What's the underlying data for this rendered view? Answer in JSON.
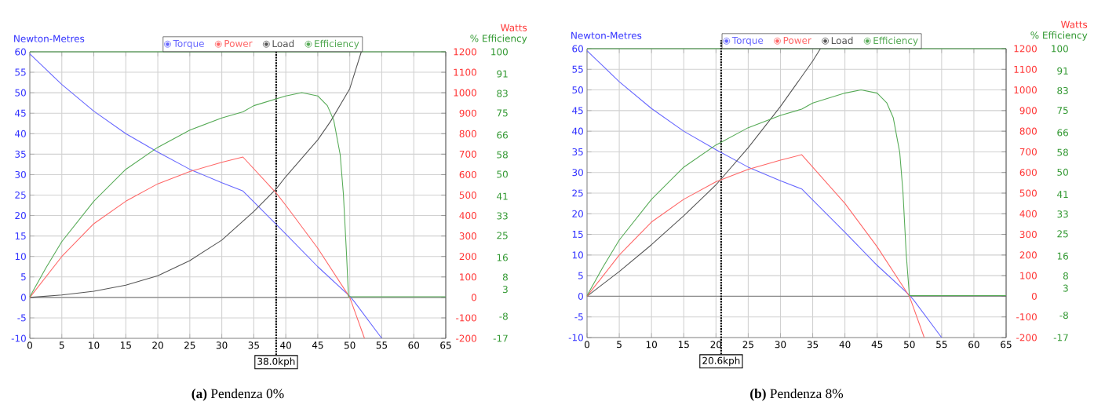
{
  "chart_data": [
    {
      "type": "line",
      "xlim": [
        0,
        65
      ],
      "xticks": [
        0,
        5,
        10,
        15,
        20,
        25,
        30,
        35,
        40,
        45,
        50,
        55,
        60,
        65
      ],
      "ylim": [
        -10,
        60
      ],
      "yticks": [
        -10,
        -5,
        0,
        5,
        10,
        15,
        20,
        25,
        30,
        35,
        40,
        45,
        50,
        55,
        60
      ],
      "y2lim": [
        -200,
        1200
      ],
      "y2ticks": [
        -200,
        -100,
        0,
        100,
        200,
        300,
        400,
        500,
        600,
        700,
        800,
        900,
        1000,
        1100,
        1200
      ],
      "y3lim": [
        -17,
        100
      ],
      "y3ticks": [
        -17,
        -8,
        3,
        8,
        16,
        25,
        33,
        41,
        50,
        58,
        66,
        75,
        83,
        91,
        100
      ],
      "ylabel": "Newton-Metres",
      "y2label": "Watts",
      "y3label": "% Efficiency",
      "grid": true,
      "legend": "top",
      "series": [
        {
          "name": "Torque",
          "color": "#6666ff",
          "x": [
            0,
            5,
            10,
            15,
            20,
            25,
            30,
            33.3,
            40,
            45,
            50,
            50.7,
            55
          ],
          "values": [
            59.5,
            52,
            45.5,
            40,
            35.5,
            31.3,
            28,
            26,
            15.5,
            7.5,
            0.3,
            -1,
            -10
          ]
        },
        {
          "name": "Power",
          "color": "#ff6666",
          "axis": "y2",
          "x": [
            0,
            5,
            10,
            15,
            20,
            25,
            30,
            33.3,
            38.5,
            40,
            45,
            50,
            52.3
          ],
          "values": [
            0,
            200,
            360,
            470,
            555,
            615,
            660,
            686,
            510,
            450,
            240,
            0,
            -200
          ]
        },
        {
          "name": "Load",
          "color": "#555555",
          "x": [
            0,
            5,
            10,
            15,
            20,
            25,
            30,
            35,
            38.5,
            40,
            45,
            47,
            50,
            51.8
          ],
          "values": [
            0,
            0.6,
            1.5,
            3,
            5.3,
            9,
            14,
            21,
            26.5,
            29.5,
            38.5,
            43,
            51,
            60
          ]
        },
        {
          "name": "Efficiency",
          "color": "#55aa55",
          "axis": "y3",
          "x": [
            0,
            2.5,
            5,
            10,
            15,
            20,
            25,
            30,
            33.3,
            35,
            40,
            42.5,
            45,
            46.5,
            47.5,
            48.5,
            49,
            49.5,
            49.8,
            65
          ],
          "values": [
            0,
            11.7,
            22.5,
            39,
            52,
            61,
            68,
            73,
            75.5,
            78,
            82,
            83.3,
            82,
            78,
            72,
            58,
            42,
            17,
            0,
            0
          ]
        }
      ],
      "ref_lines": [
        {
          "axis": "y",
          "value": 60,
          "color": "#55aa55"
        },
        {
          "axis": "y",
          "value": 0,
          "color": "#888888"
        },
        {
          "axis": "x",
          "value": 38.5,
          "label": "38.0kph",
          "color": "#000000",
          "line_style": "dotted"
        }
      ],
      "annotations": [
        "**(a)** Pendenza 0%"
      ]
    },
    {
      "type": "line",
      "xlim": [
        0,
        65
      ],
      "xticks": [
        0,
        5,
        10,
        15,
        20,
        25,
        30,
        35,
        40,
        45,
        50,
        55,
        60,
        65
      ],
      "ylim": [
        -10,
        60
      ],
      "yticks": [
        -10,
        -5,
        0,
        5,
        10,
        15,
        20,
        25,
        30,
        35,
        40,
        45,
        50,
        55,
        60
      ],
      "y2lim": [
        -200,
        1200
      ],
      "y2ticks": [
        -200,
        -100,
        0,
        100,
        200,
        300,
        400,
        500,
        600,
        700,
        800,
        900,
        1000,
        1100,
        1200
      ],
      "y3lim": [
        -17,
        100
      ],
      "y3ticks": [
        -17,
        -8,
        3,
        8,
        16,
        25,
        33,
        41,
        50,
        58,
        66,
        75,
        83,
        91,
        100
      ],
      "ylabel": "Newton-Metres",
      "y2label": "Watts",
      "y3label": "% Efficiency",
      "grid": true,
      "legend": "top",
      "series": [
        {
          "name": "Torque",
          "color": "#6666ff",
          "x": [
            0,
            5,
            10,
            15,
            20,
            25,
            30,
            33.3,
            40,
            45,
            50,
            50.7,
            55
          ],
          "values": [
            59.5,
            52,
            45.5,
            40,
            35.5,
            31.3,
            28,
            26,
            15.5,
            7.5,
            0.3,
            -1,
            -10
          ]
        },
        {
          "name": "Power",
          "color": "#ff6666",
          "axis": "y2",
          "x": [
            0,
            5,
            10,
            15,
            20,
            25,
            30,
            33.3,
            40,
            45,
            50,
            52.3
          ],
          "values": [
            0,
            200,
            360,
            470,
            555,
            615,
            660,
            686,
            450,
            240,
            0,
            -200
          ]
        },
        {
          "name": "Load",
          "color": "#555555",
          "x": [
            0,
            5,
            10,
            15,
            20,
            25,
            30,
            35,
            36.2
          ],
          "values": [
            0,
            6,
            12.5,
            19.5,
            27,
            36,
            46,
            57,
            60
          ]
        },
        {
          "name": "Efficiency",
          "color": "#55aa55",
          "axis": "y3",
          "x": [
            0,
            2.5,
            5,
            10,
            15,
            20,
            25,
            30,
            33.3,
            35,
            40,
            42.5,
            45,
            46.5,
            47.5,
            48.5,
            49,
            49.5,
            50,
            65
          ],
          "values": [
            0,
            11.7,
            22.5,
            39,
            52,
            61,
            68,
            73,
            75.5,
            78,
            82,
            83.3,
            82,
            78,
            72,
            58,
            42,
            17,
            0,
            0
          ]
        }
      ],
      "ref_lines": [
        {
          "axis": "y",
          "value": 60,
          "color": "#55aa55"
        },
        {
          "axis": "y",
          "value": 0,
          "color": "#888888"
        },
        {
          "axis": "x",
          "value": 20.8,
          "label": "20.6kph",
          "color": "#000000",
          "line_style": "dotted"
        }
      ],
      "annotations": [
        "**(b)** Pendenza 8%"
      ]
    }
  ]
}
